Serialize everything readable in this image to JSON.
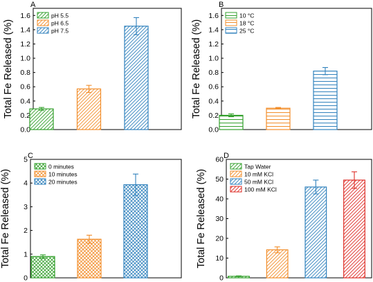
{
  "figure": {
    "ylabel": "Total Fe Released (%)"
  },
  "chart_data": [
    {
      "panel": "A",
      "type": "bar",
      "ylabel": "Total Fe Released (%)",
      "ylim": [
        0,
        1.7
      ],
      "yticks": [
        0.0,
        0.2,
        0.4,
        0.6,
        0.8,
        1.0,
        1.2,
        1.4,
        1.6
      ],
      "tick_decimals": 1,
      "legend_position": "top-left",
      "pattern": "diag",
      "series": [
        {
          "name": "pH 5.5",
          "value": 0.29,
          "error": 0.02,
          "color": "#33a02c"
        },
        {
          "name": "pH 6.5",
          "value": 0.57,
          "error": 0.05,
          "color": "#f28e2b"
        },
        {
          "name": "pH 7.5",
          "value": 1.45,
          "error": 0.12,
          "color": "#3182bd"
        }
      ]
    },
    {
      "panel": "B",
      "type": "bar",
      "ylabel": "Total Fe Released (%)",
      "ylim": [
        0,
        1.7
      ],
      "yticks": [
        0.0,
        0.2,
        0.4,
        0.6,
        0.8,
        1.0,
        1.2,
        1.4,
        1.6
      ],
      "tick_decimals": 1,
      "legend_position": "top-left",
      "pattern": "horiz",
      "series": [
        {
          "name": "10 °C",
          "value": 0.2,
          "error": 0.02,
          "color": "#33a02c"
        },
        {
          "name": "18 °C",
          "value": 0.3,
          "error": 0.01,
          "color": "#f28e2b"
        },
        {
          "name": "25 °C",
          "value": 0.82,
          "error": 0.05,
          "color": "#3182bd"
        }
      ]
    },
    {
      "panel": "C",
      "type": "bar",
      "ylabel": "Total Fe Released (%)",
      "ylim": [
        0,
        5
      ],
      "yticks": [
        0,
        1,
        2,
        3,
        4,
        5
      ],
      "tick_decimals": 0,
      "legend_position": "top-left",
      "pattern": "cross",
      "series": [
        {
          "name": "0 minutes",
          "value": 0.9,
          "error": 0.07,
          "color": "#33a02c"
        },
        {
          "name": "10 minutes",
          "value": 1.63,
          "error": 0.17,
          "color": "#f28e2b"
        },
        {
          "name": "20 minutes",
          "value": 3.93,
          "error": 0.45,
          "color": "#3182bd"
        }
      ]
    },
    {
      "panel": "D",
      "type": "bar",
      "ylabel": "Total Fe Released (%)",
      "ylim": [
        0,
        60
      ],
      "yticks": [
        0,
        10,
        20,
        30,
        40,
        50,
        60
      ],
      "tick_decimals": 0,
      "legend_position": "top-left",
      "pattern": "diag",
      "series": [
        {
          "name": "Tap Water",
          "value": 0.8,
          "error": 0.2,
          "color": "#33a02c"
        },
        {
          "name": "10 mM KCl",
          "value": 14.2,
          "error": 1.5,
          "color": "#f28e2b"
        },
        {
          "name": "50 mM KCl",
          "value": 46.0,
          "error": 3.5,
          "color": "#3182bd"
        },
        {
          "name": "100 mM KCl",
          "value": 49.5,
          "error": 4.2,
          "color": "#de2d26"
        }
      ]
    }
  ]
}
